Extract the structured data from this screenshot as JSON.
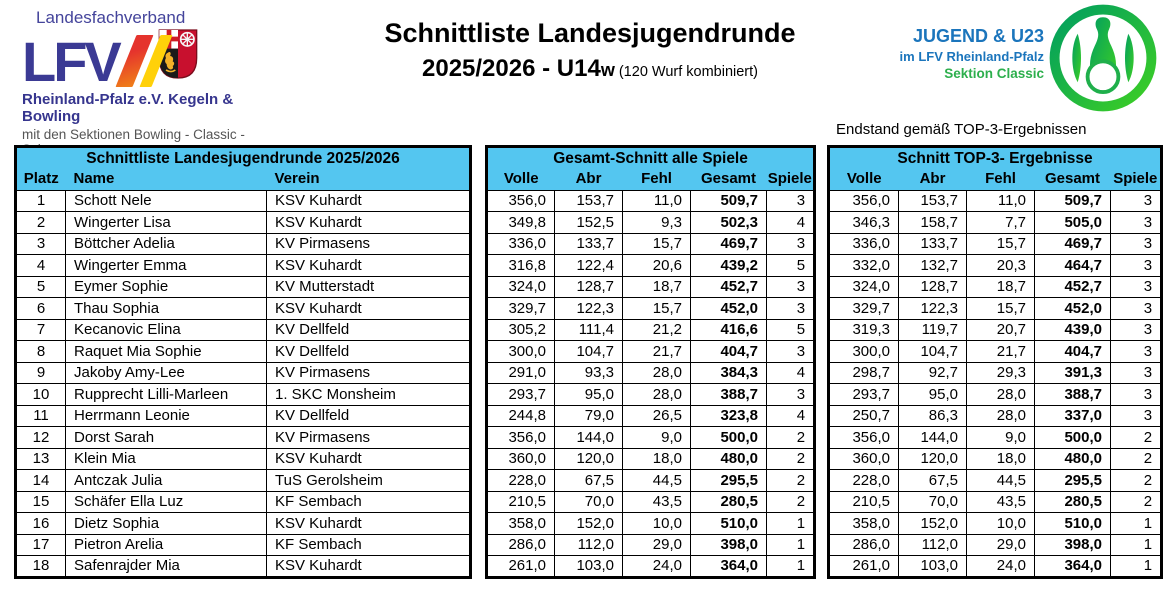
{
  "header": {
    "lfv_logo": {
      "top_text": "Landesfachverband",
      "acronym": "LFV",
      "line1": "Rheinland-Pfalz e.V. Kegeln & Bowling",
      "line2": "mit den Sektionen Bowling - Classic - Schere",
      "shield_icon": "rheinland-pfalz-coat-of-arms"
    },
    "title": {
      "line1": "Schnittliste Landesjugendrunde",
      "line2_main": "2025/2026  -  U14",
      "line2_small": "w",
      "line2_note": " (120 Wurf kombiniert)"
    },
    "jugend_logo": {
      "line1": "JUGEND & U23",
      "line2": "im LFV Rheinland-Pfalz",
      "line3": "Sektion Classic",
      "badge_icon": "kegel-pin-circle"
    }
  },
  "note_above_right_table": "Endstand gemäß TOP-3-Ergebnissen",
  "colors": {
    "table_header_blue": "#54c6f0",
    "lfv_blue": "#3b3a94",
    "stripe_red": "#e5332d",
    "stripe_yellow": "#ffd10a",
    "jugend_blue": "#1b75bc",
    "jugend_green": "#2daf4d"
  },
  "left_table": {
    "title": "Schnittliste Landesjugendrunde 2025/2026",
    "columns": [
      "Platz",
      "Name",
      "Verein"
    ],
    "rows": [
      [
        "1",
        "Schott Nele",
        "KSV Kuhardt"
      ],
      [
        "2",
        "Wingerter Lisa",
        "KSV Kuhardt"
      ],
      [
        "3",
        "Böttcher Adelia",
        "KV Pirmasens"
      ],
      [
        "4",
        "Wingerter Emma",
        "KSV Kuhardt"
      ],
      [
        "5",
        "Eymer Sophie",
        "KV Mutterstadt"
      ],
      [
        "6",
        "Thau Sophia",
        "KSV Kuhardt"
      ],
      [
        "7",
        "Kecanovic Elina",
        "KV Dellfeld"
      ],
      [
        "8",
        "Raquet Mia Sophie",
        "KV Dellfeld"
      ],
      [
        "9",
        "Jakoby Amy-Lee",
        "KV Pirmasens"
      ],
      [
        "10",
        "Rupprecht Lilli-Marleen",
        "1. SKC Monsheim"
      ],
      [
        "11",
        "Herrmann Leonie",
        "KV Dellfeld"
      ],
      [
        "12",
        "Dorst Sarah",
        "KV Pirmasens"
      ],
      [
        "13",
        "Klein Mia",
        "KSV Kuhardt"
      ],
      [
        "14",
        "Antczak Julia",
        "TuS Gerolsheim"
      ],
      [
        "15",
        "Schäfer Ella Luz",
        "KF Sembach"
      ],
      [
        "16",
        "Dietz Sophia",
        "KSV Kuhardt"
      ],
      [
        "17",
        "Pietron Arelia",
        "KF Sembach"
      ],
      [
        "18",
        "Safenrajder Mia",
        "KSV Kuhardt"
      ]
    ]
  },
  "middle_table": {
    "title": "Gesamt-Schnitt alle Spiele",
    "columns": [
      "Volle",
      "Abr",
      "Fehl",
      "Gesamt",
      "Spiele"
    ],
    "rows": [
      [
        "356,0",
        "153,7",
        "11,0",
        "509,7",
        "3"
      ],
      [
        "349,8",
        "152,5",
        "9,3",
        "502,3",
        "4"
      ],
      [
        "336,0",
        "133,7",
        "15,7",
        "469,7",
        "3"
      ],
      [
        "316,8",
        "122,4",
        "20,6",
        "439,2",
        "5"
      ],
      [
        "324,0",
        "128,7",
        "18,7",
        "452,7",
        "3"
      ],
      [
        "329,7",
        "122,3",
        "15,7",
        "452,0",
        "3"
      ],
      [
        "305,2",
        "111,4",
        "21,2",
        "416,6",
        "5"
      ],
      [
        "300,0",
        "104,7",
        "21,7",
        "404,7",
        "3"
      ],
      [
        "291,0",
        "93,3",
        "28,0",
        "384,3",
        "4"
      ],
      [
        "293,7",
        "95,0",
        "28,0",
        "388,7",
        "3"
      ],
      [
        "244,8",
        "79,0",
        "26,5",
        "323,8",
        "4"
      ],
      [
        "356,0",
        "144,0",
        "9,0",
        "500,0",
        "2"
      ],
      [
        "360,0",
        "120,0",
        "18,0",
        "480,0",
        "2"
      ],
      [
        "228,0",
        "67,5",
        "44,5",
        "295,5",
        "2"
      ],
      [
        "210,5",
        "70,0",
        "43,5",
        "280,5",
        "2"
      ],
      [
        "358,0",
        "152,0",
        "10,0",
        "510,0",
        "1"
      ],
      [
        "286,0",
        "112,0",
        "29,0",
        "398,0",
        "1"
      ],
      [
        "261,0",
        "103,0",
        "24,0",
        "364,0",
        "1"
      ]
    ]
  },
  "right_table": {
    "title": "Schnitt TOP-3- Ergebnisse",
    "columns": [
      "Volle",
      "Abr",
      "Fehl",
      "Gesamt",
      "Spiele"
    ],
    "rows": [
      [
        "356,0",
        "153,7",
        "11,0",
        "509,7",
        "3"
      ],
      [
        "346,3",
        "158,7",
        "7,7",
        "505,0",
        "3"
      ],
      [
        "336,0",
        "133,7",
        "15,7",
        "469,7",
        "3"
      ],
      [
        "332,0",
        "132,7",
        "20,3",
        "464,7",
        "3"
      ],
      [
        "324,0",
        "128,7",
        "18,7",
        "452,7",
        "3"
      ],
      [
        "329,7",
        "122,3",
        "15,7",
        "452,0",
        "3"
      ],
      [
        "319,3",
        "119,7",
        "20,7",
        "439,0",
        "3"
      ],
      [
        "300,0",
        "104,7",
        "21,7",
        "404,7",
        "3"
      ],
      [
        "298,7",
        "92,7",
        "29,3",
        "391,3",
        "3"
      ],
      [
        "293,7",
        "95,0",
        "28,0",
        "388,7",
        "3"
      ],
      [
        "250,7",
        "86,3",
        "28,0",
        "337,0",
        "3"
      ],
      [
        "356,0",
        "144,0",
        "9,0",
        "500,0",
        "2"
      ],
      [
        "360,0",
        "120,0",
        "18,0",
        "480,0",
        "2"
      ],
      [
        "228,0",
        "67,5",
        "44,5",
        "295,5",
        "2"
      ],
      [
        "210,5",
        "70,0",
        "43,5",
        "280,5",
        "2"
      ],
      [
        "358,0",
        "152,0",
        "10,0",
        "510,0",
        "1"
      ],
      [
        "286,0",
        "112,0",
        "29,0",
        "398,0",
        "1"
      ],
      [
        "261,0",
        "103,0",
        "24,0",
        "364,0",
        "1"
      ]
    ]
  }
}
